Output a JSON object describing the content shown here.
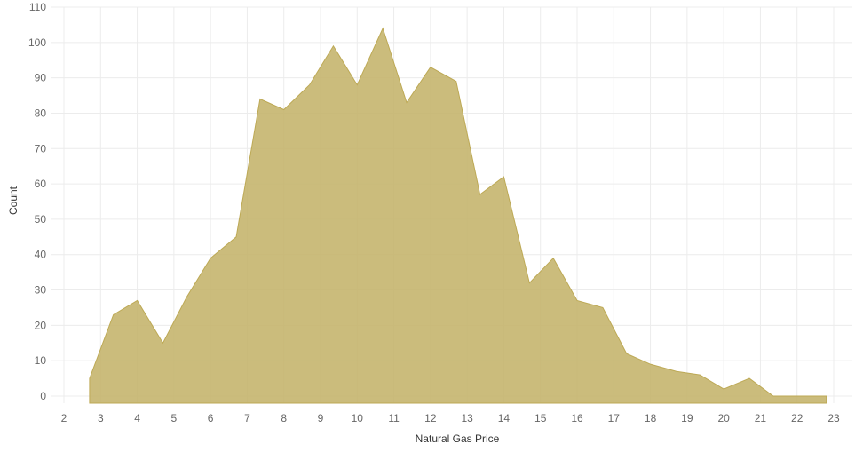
{
  "chart_data": {
    "type": "area",
    "xlabel": "Natural Gas Price",
    "ylabel": "Count",
    "xlim": [
      1.7,
      23.6
    ],
    "ylim": [
      -2,
      110
    ],
    "x_ticks": [
      2,
      3,
      4,
      5,
      6,
      7,
      8,
      9,
      10,
      11,
      12,
      13,
      14,
      15,
      16,
      17,
      18,
      19,
      20,
      21,
      22,
      23
    ],
    "y_ticks": [
      0,
      10,
      20,
      30,
      40,
      50,
      60,
      70,
      80,
      90,
      100,
      110
    ],
    "grid": true,
    "fill_color": "#c4b36a",
    "series": [
      {
        "x": [
          2.7,
          3.35,
          4.0,
          4.7,
          5.35,
          6.0,
          6.7,
          7.35,
          8.0,
          8.7,
          9.35,
          10.0,
          10.7,
          11.35,
          12.0,
          12.7,
          13.35,
          14.0,
          14.7,
          15.35,
          16.0,
          16.7,
          17.35,
          18.0,
          18.7,
          19.35,
          20.0,
          20.7,
          21.35,
          22.0,
          22.8
        ],
        "y": [
          5,
          23,
          27,
          15,
          28,
          39,
          45,
          84,
          81,
          88,
          99,
          88,
          104,
          83,
          93,
          89,
          57,
          62,
          32,
          39,
          27,
          25,
          12,
          9,
          7,
          6,
          2,
          5,
          0,
          0,
          0
        ]
      }
    ]
  }
}
